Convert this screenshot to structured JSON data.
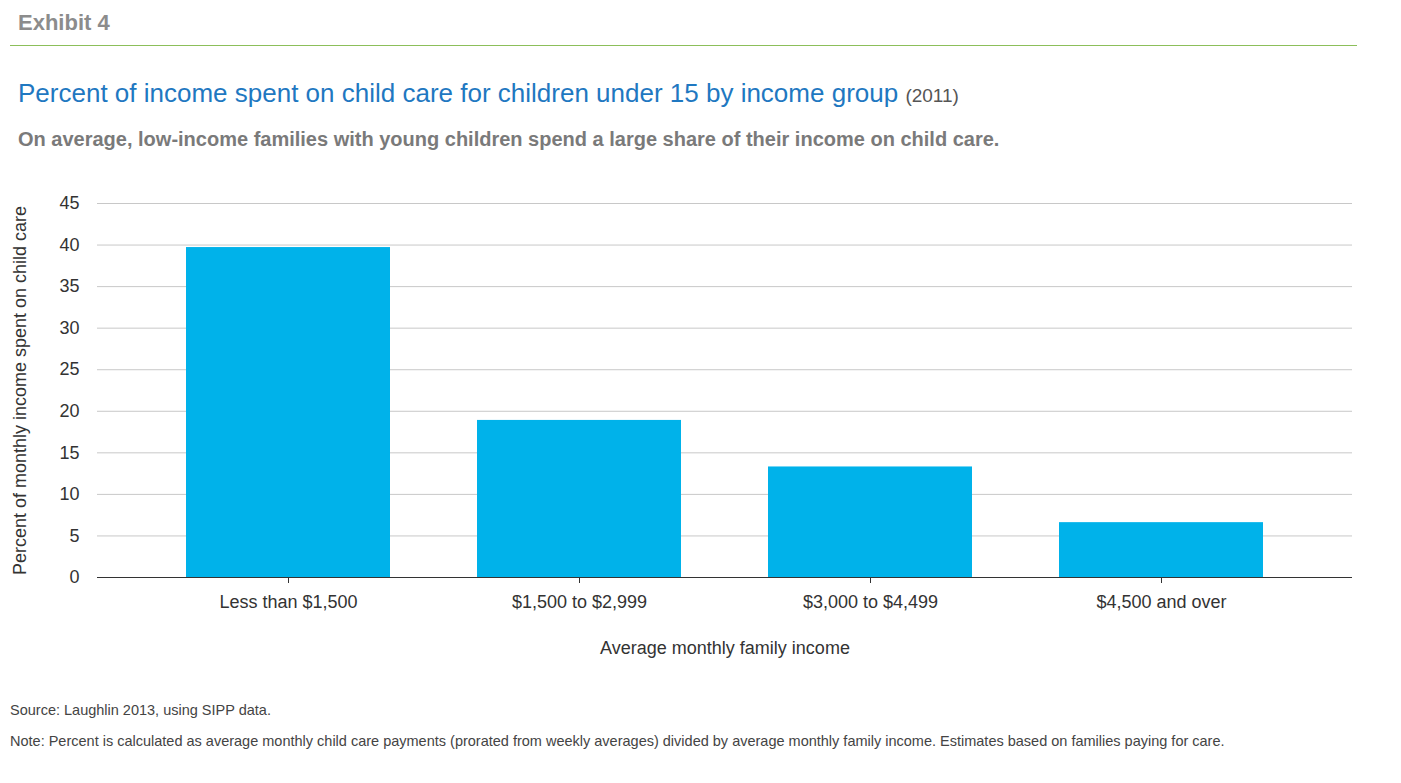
{
  "chart_data": {
    "type": "bar",
    "exhibit": "Exhibit 4",
    "title": "Percent of income spent on child care for children under 15 by income group",
    "title_year": "(2011)",
    "subtitle": "On average, low-income families with young children spend a large share of their income on child care.",
    "categories": [
      "Less than $1,500",
      "$1,500 to $2,999",
      "$3,000 to $4,499",
      "$4,500 and over"
    ],
    "values": [
      39.7,
      18.9,
      13.3,
      6.6
    ],
    "color": "#00b2ea",
    "x_label": "Average monthly family income",
    "y_label": "Percent of monthly income spent on child care",
    "ylim": [
      0,
      45
    ],
    "yticks": [
      0,
      5,
      10,
      15,
      20,
      25,
      30,
      35,
      40,
      45
    ],
    "grid": true,
    "source": "Source: Laughlin 2013, using SIPP data.",
    "note": "Note: Percent is calculated as average monthly child care payments (prorated from weekly averages) divided by average monthly family income. Estimates based on families paying for care."
  }
}
